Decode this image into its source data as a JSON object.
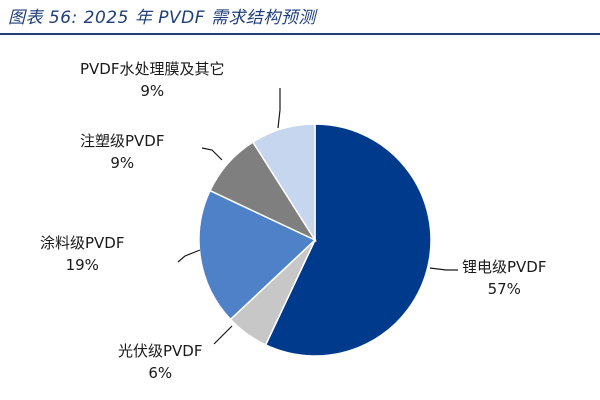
{
  "figure": {
    "title": "图表 56:  2025 年 PVDF 需求结构预测"
  },
  "chart_data": {
    "type": "pie",
    "title": "",
    "start_angle_deg": 0,
    "direction": "clockwise",
    "legend": "none",
    "slices": [
      {
        "name": "锂电级PVDF",
        "pct_label": "57%",
        "value": 57,
        "color": "#003a8c"
      },
      {
        "name": "光伏级PVDF",
        "pct_label": "6%",
        "value": 6,
        "color": "#c7c7c7"
      },
      {
        "name": "涂料级PVDF",
        "pct_label": "19%",
        "value": 19,
        "color": "#4f81c9"
      },
      {
        "name": "注塑级PVDF",
        "pct_label": "9%",
        "value": 9,
        "color": "#7f7f7f"
      },
      {
        "name": "PVDF水处理膜及其它",
        "pct_label": "9%",
        "value": 9,
        "color": "#c5d6ee"
      }
    ]
  }
}
